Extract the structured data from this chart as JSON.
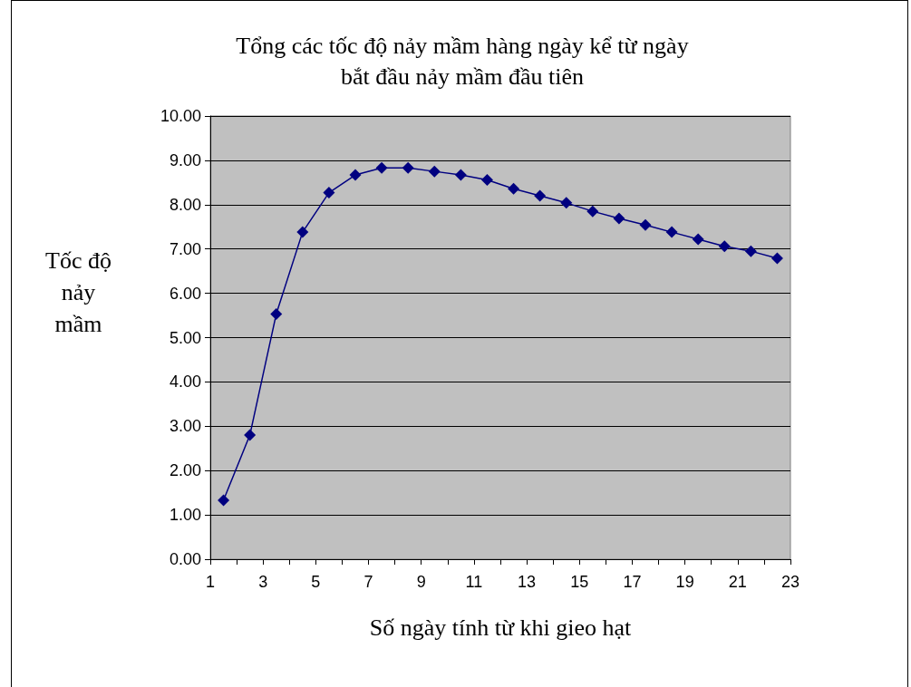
{
  "chart_data": {
    "type": "line",
    "title": "Tổng các tốc độ nảy mầm hàng ngày kể từ ngày\nbắt đầu nảy mầm đầu tiên",
    "xlabel": "Số ngày tính từ khi gieo hạt",
    "ylabel": "Tốc độ\nnảy\nmầm",
    "x": [
      1.5,
      2.5,
      3.5,
      4.5,
      5.5,
      6.5,
      7.5,
      8.5,
      9.5,
      10.5,
      11.5,
      12.5,
      13.5,
      14.5,
      15.5,
      16.5,
      17.5,
      18.5,
      19.5,
      20.5,
      21.5,
      22.5
    ],
    "series": [
      {
        "color": "#000080",
        "values": [
          1.33,
          2.8,
          5.53,
          7.38,
          8.27,
          8.67,
          8.83,
          8.83,
          8.75,
          8.67,
          8.56,
          8.36,
          8.2,
          8.04,
          7.85,
          7.69,
          7.54,
          7.38,
          7.22,
          7.06,
          6.95,
          6.79
        ]
      }
    ],
    "xlim": [
      1,
      23
    ],
    "xticks": [
      1,
      {
        "value": 2,
        "label": null
      },
      3,
      {
        "value": 4,
        "label": null
      },
      5,
      {
        "value": 6,
        "label": null
      },
      7,
      {
        "value": 8,
        "label": null
      },
      9,
      {
        "value": 10,
        "label": null
      },
      11,
      {
        "value": 12,
        "label": null
      },
      13,
      {
        "value": 14,
        "label": null
      },
      15,
      {
        "value": 16,
        "label": null
      },
      17,
      {
        "value": 18,
        "label": null
      },
      19,
      {
        "value": 20,
        "label": null
      },
      21,
      {
        "value": 22,
        "label": null
      },
      23
    ],
    "ylim": [
      0,
      10
    ],
    "yticks": [
      {
        "value": 0,
        "label": "0.00"
      },
      {
        "value": 1,
        "label": "1.00"
      },
      {
        "value": 2,
        "label": "2.00"
      },
      {
        "value": 3,
        "label": "3.00"
      },
      {
        "value": 4,
        "label": "4.00"
      },
      {
        "value": 5,
        "label": "5.00"
      },
      {
        "value": 6,
        "label": "6.00"
      },
      {
        "value": 7,
        "label": "7.00"
      },
      {
        "value": 8,
        "label": "8.00"
      },
      {
        "value": 9,
        "label": "9.00"
      },
      {
        "value": 10,
        "label": "10.00"
      }
    ],
    "grid": "y",
    "marker": "diamond",
    "line_style": "solid"
  }
}
